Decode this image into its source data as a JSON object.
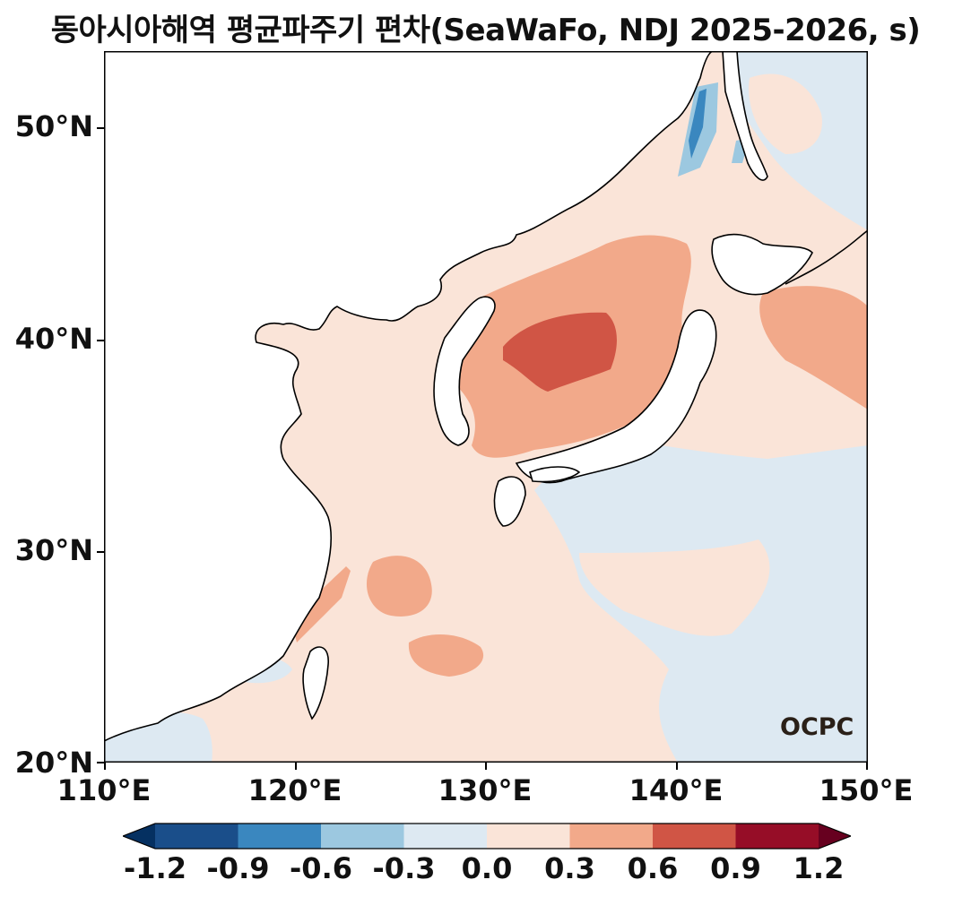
{
  "title": "동아시아해역 평균파주기 편차(SeaWaFo, NDJ 2025-2026, s)",
  "axes": {
    "y_ticks": [
      "20°N",
      "30°N",
      "40°N",
      "50°N"
    ],
    "x_ticks": [
      "110°E",
      "120°E",
      "130°E",
      "140°E",
      "150°E"
    ]
  },
  "colorbar": {
    "labels": [
      "-1.2",
      "-0.9",
      "-0.6",
      "-0.3",
      "0.0",
      "0.3",
      "0.6",
      "0.9",
      "1.2"
    ],
    "colors": [
      "#053061",
      "#1a4e8a",
      "#3a87bf",
      "#9cc8e0",
      "#dde9f2",
      "#fae4d8",
      "#f2a98a",
      "#d05545",
      "#960d27",
      "#67001f"
    ]
  },
  "logo": "OCPC",
  "chart_data": {
    "type": "heatmap",
    "title": "동아시아해역 평균파주기 편차(SeaWaFo, NDJ 2025-2026, s)",
    "x_ticks": [
      "110°E",
      "120°E",
      "130°E",
      "140°E",
      "150°E"
    ],
    "y_ticks": [
      "20°N",
      "30°N",
      "40°N",
      "50°N"
    ],
    "xlim": [
      110,
      150
    ],
    "ylim": [
      20,
      53.5
    ],
    "levels": [
      -1.2,
      -0.9,
      -0.6,
      -0.3,
      0.0,
      0.3,
      0.6,
      0.9,
      1.2
    ],
    "extend": "both",
    "unit": "s"
  }
}
